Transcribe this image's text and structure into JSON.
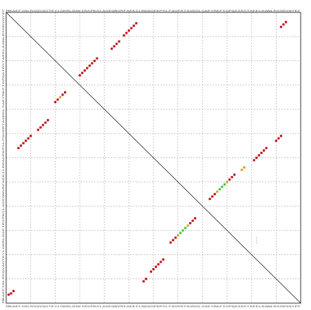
{
  "colors": {
    "background": "#ffffff",
    "grid": "#b0b0b0",
    "axis": "#000000",
    "diagonal": "#000000",
    "high": "#c0161c",
    "mid": "#d8a020",
    "low": "#3cc83c",
    "faint": "#f0b0b0"
  },
  "axis_sequence": "MKAEFIDLRSQVAGTEYLGKRLDAEIRSPKSLAGEQNVRFAEKILRDAGEKPSLFQVERTAVDGLSAEYRKFIGPQAIRSTAEELKANLRSGDVQYEF",
  "chart_data": {
    "type": "scatter",
    "xlim": [
      0,
      12
    ],
    "ylim": [
      0,
      12
    ],
    "grid": true,
    "diagonal": true,
    "segments": [
      {
        "name": "",
        "color_level": "high",
        "points": [
          [
            11.2,
            11.4
          ],
          [
            11.3,
            11.5
          ],
          [
            11.4,
            11.6
          ]
        ]
      },
      {
        "name": "",
        "color_level": "high",
        "points": [
          [
            0.1,
            0.35
          ],
          [
            0.2,
            0.4
          ],
          [
            0.3,
            0.5
          ]
        ]
      },
      {
        "name": "",
        "color_level": "high",
        "points": [
          [
            0.5,
            6.4
          ],
          [
            0.6,
            6.5
          ],
          [
            0.7,
            6.6
          ],
          [
            0.8,
            6.7
          ],
          [
            0.9,
            6.8
          ],
          [
            1.0,
            6.9
          ]
        ]
      },
      {
        "name": "",
        "color_level": "high",
        "points": [
          [
            1.3,
            7.15
          ],
          [
            1.4,
            7.25
          ],
          [
            1.5,
            7.35
          ],
          [
            1.6,
            7.45
          ],
          [
            1.7,
            7.55
          ]
        ]
      },
      {
        "name": "",
        "color_level": "mid",
        "points": [
          [
            2.0,
            8.3
          ],
          [
            2.1,
            8.4
          ],
          [
            2.2,
            8.5
          ],
          [
            2.3,
            8.6
          ],
          [
            2.4,
            8.7
          ]
        ]
      },
      {
        "name": "",
        "color_level": "high",
        "points": [
          [
            3.0,
            9.4
          ],
          [
            3.1,
            9.5
          ],
          [
            3.2,
            9.6
          ],
          [
            3.3,
            9.7
          ],
          [
            3.4,
            9.8
          ],
          [
            3.5,
            9.9
          ],
          [
            3.6,
            10.0
          ],
          [
            3.7,
            10.1
          ]
        ]
      },
      {
        "name": "",
        "color_level": "high",
        "points": [
          [
            4.3,
            10.5
          ],
          [
            4.4,
            10.6
          ],
          [
            4.5,
            10.7
          ],
          [
            4.6,
            10.8
          ]
        ]
      },
      {
        "name": "",
        "color_level": "high",
        "points": [
          [
            4.8,
            11.05
          ],
          [
            4.9,
            11.15
          ],
          [
            5.0,
            11.25
          ],
          [
            5.1,
            11.35
          ],
          [
            5.2,
            11.45
          ],
          [
            5.3,
            11.55
          ]
        ]
      },
      {
        "name": "",
        "color_level": "high",
        "points": [
          [
            5.6,
            0.9
          ],
          [
            5.7,
            1.0
          ]
        ]
      },
      {
        "name": "",
        "color_level": "high",
        "points": [
          [
            5.9,
            1.3
          ],
          [
            6.0,
            1.4
          ],
          [
            6.1,
            1.5
          ],
          [
            6.2,
            1.6
          ],
          [
            6.3,
            1.7
          ],
          [
            6.4,
            1.8
          ]
        ]
      },
      {
        "name": "",
        "color_level": "low",
        "points": [
          [
            6.7,
            2.5
          ],
          [
            6.8,
            2.6
          ],
          [
            6.9,
            2.7
          ],
          [
            7.0,
            2.8
          ],
          [
            7.1,
            2.9
          ],
          [
            7.2,
            3.0
          ],
          [
            7.3,
            3.1
          ],
          [
            7.4,
            3.2
          ],
          [
            7.5,
            3.3
          ],
          [
            7.6,
            3.4
          ],
          [
            7.7,
            3.5
          ]
        ]
      },
      {
        "name": "",
        "color_level": "low",
        "points": [
          [
            8.3,
            4.3
          ],
          [
            8.4,
            4.4
          ],
          [
            8.5,
            4.5
          ],
          [
            8.6,
            4.6
          ],
          [
            8.7,
            4.7
          ],
          [
            8.8,
            4.8
          ],
          [
            8.9,
            4.9
          ],
          [
            9.0,
            5.0
          ],
          [
            9.1,
            5.1
          ],
          [
            9.2,
            5.2
          ],
          [
            9.3,
            5.3
          ]
        ]
      },
      {
        "name": "",
        "color_level": "mid",
        "points": [
          [
            9.6,
            5.5
          ],
          [
            9.7,
            5.6
          ]
        ]
      },
      {
        "name": "",
        "color_level": "high",
        "points": [
          [
            10.1,
            5.9
          ],
          [
            10.2,
            6.0
          ],
          [
            10.3,
            6.1
          ],
          [
            10.4,
            6.2
          ],
          [
            10.5,
            6.3
          ],
          [
            10.6,
            6.4
          ]
        ]
      },
      {
        "name": "",
        "color_level": "high",
        "points": [
          [
            11.0,
            6.7
          ],
          [
            11.1,
            6.8
          ],
          [
            11.2,
            6.9
          ]
        ]
      },
      {
        "name": "",
        "color_level": "faint",
        "points": [
          [
            10.2,
            2.5
          ],
          [
            10.2,
            2.6
          ],
          [
            10.2,
            2.7
          ]
        ]
      }
    ]
  }
}
